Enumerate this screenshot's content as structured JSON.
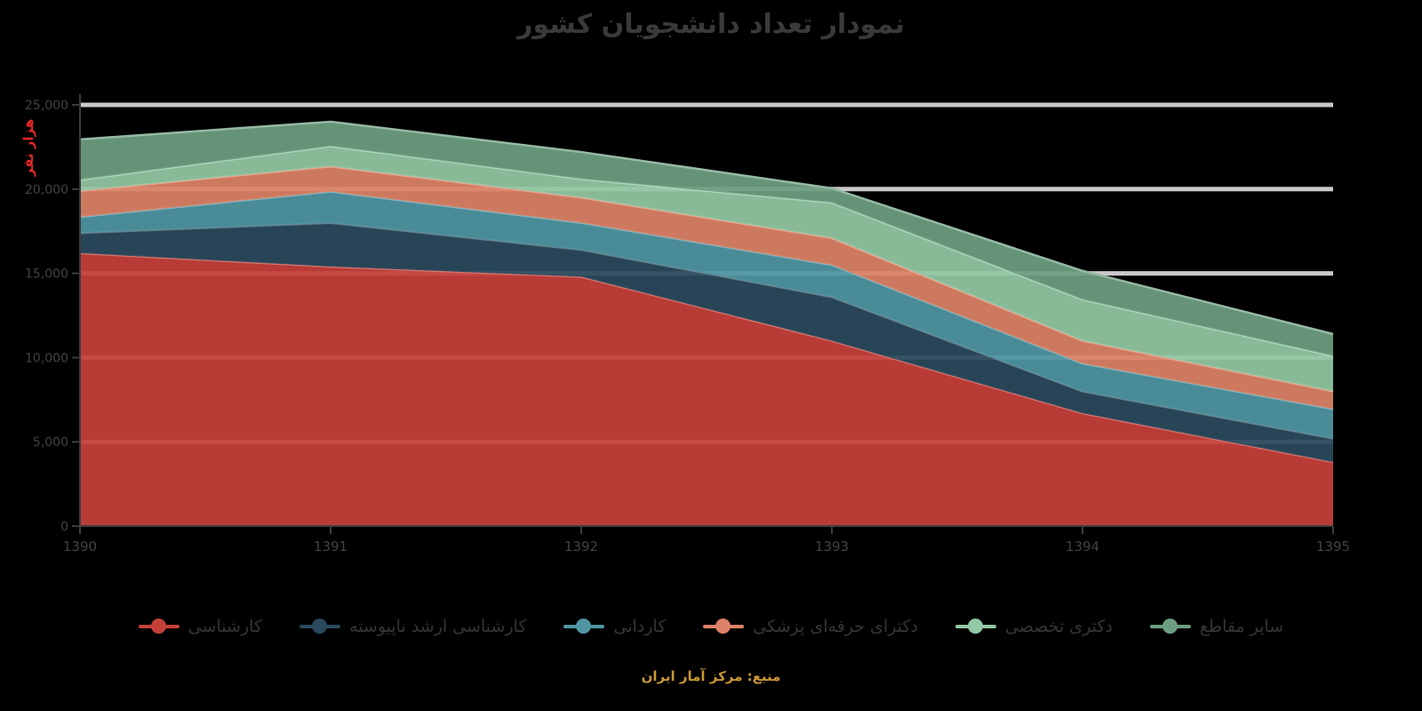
{
  "title": "نمودار تعداد دانشجویان کشور",
  "caption": "منبع: مرکز آمار ایران",
  "colors": {
    "background": "#000000",
    "title_text": "#3a3a3a",
    "axis_text": "#424242",
    "axis_line": "#3c3c3c",
    "grid_line": "#c9c9c9",
    "y_name_red": "#e32726",
    "caption_orange": "#c99733"
  },
  "chart_data": {
    "type": "area",
    "stacked": true,
    "title": "نمودار تعداد دانشجویان کشور",
    "ylabel": "هزار نفر",
    "xlabel": "",
    "x": [
      "1390",
      "1391",
      "1392",
      "1393",
      "1394",
      "1395"
    ],
    "y_ticks": [
      "0",
      "5,000",
      "10,000",
      "15,000",
      "20,000",
      "25,000"
    ],
    "ylim": [
      0,
      25000
    ],
    "grid": true,
    "legend_position": "bottom",
    "series": [
      {
        "name": "کارشناسی",
        "color": "#c6403a",
        "values": [
          16200,
          15400,
          14800,
          11000,
          6700,
          3800
        ]
      },
      {
        "name": "کارشناسی ارشد ناپیوسته",
        "color": "#2a4a5d",
        "values": [
          1200,
          2600,
          1600,
          2600,
          1300,
          1400
        ]
      },
      {
        "name": "کاردانی",
        "color": "#4f96a2",
        "values": [
          950,
          1850,
          1600,
          1900,
          1650,
          1750
        ]
      },
      {
        "name": "دکترای حرفه‌ای پزشکی",
        "color": "#dd8266",
        "values": [
          1550,
          1500,
          1500,
          1600,
          1350,
          1050
        ]
      },
      {
        "name": "دکتری تخصصی",
        "color": "#93c8a4",
        "values": [
          650,
          1200,
          1100,
          2100,
          2450,
          2100
        ]
      },
      {
        "name": "سایر مقاطع",
        "color": "#6d9e81",
        "values": [
          2400,
          1450,
          1600,
          850,
          1700,
          1300
        ]
      }
    ]
  }
}
